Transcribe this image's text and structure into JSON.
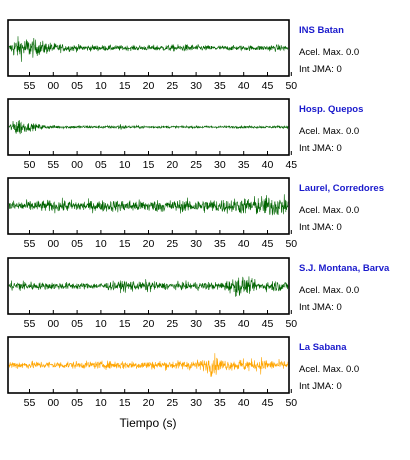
{
  "chart_data": {
    "type": "line",
    "xlabel": "Tiempo (s)",
    "panels": [
      {
        "station": "INS Batan",
        "accel_label": "Acel. Max. 0.0",
        "jma_label": "Int JMA: 0",
        "color": "#006400",
        "tick_labels": [
          "55",
          "00",
          "05",
          "10",
          "15",
          "20",
          "25",
          "30",
          "35",
          "40",
          "45",
          "50"
        ],
        "envelope": [
          [
            0,
            0.25
          ],
          [
            0.02,
            0.85
          ],
          [
            0.05,
            0.9
          ],
          [
            0.08,
            0.8
          ],
          [
            0.11,
            0.6
          ],
          [
            0.15,
            0.45
          ],
          [
            0.2,
            0.3
          ],
          [
            0.3,
            0.25
          ],
          [
            0.45,
            0.2
          ],
          [
            0.6,
            0.28
          ],
          [
            0.65,
            0.3
          ],
          [
            0.7,
            0.22
          ],
          [
            0.8,
            0.2
          ],
          [
            0.9,
            0.22
          ],
          [
            0.95,
            0.28
          ],
          [
            1.0,
            0.22
          ]
        ]
      },
      {
        "station": "Hosp. Quepos",
        "accel_label": "Acel. Max. 0.0",
        "jma_label": "Int JMA: 0",
        "color": "#006400",
        "tick_labels": [
          "50",
          "55",
          "00",
          "05",
          "10",
          "15",
          "20",
          "25",
          "30",
          "35",
          "40",
          "45"
        ],
        "envelope": [
          [
            0,
            0.2
          ],
          [
            0.02,
            0.55
          ],
          [
            0.03,
            0.9
          ],
          [
            0.05,
            0.5
          ],
          [
            0.08,
            0.3
          ],
          [
            0.15,
            0.15
          ],
          [
            0.3,
            0.12
          ],
          [
            0.38,
            0.12
          ],
          [
            0.4,
            0.3
          ],
          [
            0.42,
            0.12
          ],
          [
            0.6,
            0.1
          ],
          [
            0.8,
            0.1
          ],
          [
            0.95,
            0.1
          ],
          [
            1.0,
            0.1
          ]
        ]
      },
      {
        "station": "Laurel, Corredores",
        "accel_label": "Acel. Max. 0.0",
        "jma_label": "Int JMA: 0",
        "color": "#006400",
        "tick_labels": [
          "55",
          "00",
          "05",
          "10",
          "15",
          "20",
          "25",
          "30",
          "35",
          "40",
          "45",
          "50"
        ],
        "envelope": [
          [
            0,
            0.45
          ],
          [
            0.1,
            0.45
          ],
          [
            0.2,
            0.5
          ],
          [
            0.3,
            0.45
          ],
          [
            0.4,
            0.5
          ],
          [
            0.5,
            0.5
          ],
          [
            0.6,
            0.5
          ],
          [
            0.7,
            0.55
          ],
          [
            0.8,
            0.6
          ],
          [
            0.85,
            0.7
          ],
          [
            0.9,
            0.8
          ],
          [
            0.95,
            0.9
          ],
          [
            1.0,
            0.7
          ]
        ]
      },
      {
        "station": "S.J. Montana, Barva",
        "accel_label": "Acel. Max. 0.0",
        "jma_label": "Int JMA: 0",
        "color": "#006400",
        "tick_labels": [
          "55",
          "00",
          "05",
          "10",
          "15",
          "20",
          "25",
          "30",
          "35",
          "40",
          "45",
          "50"
        ],
        "envelope": [
          [
            0,
            0.35
          ],
          [
            0.03,
            0.5
          ],
          [
            0.1,
            0.3
          ],
          [
            0.2,
            0.3
          ],
          [
            0.3,
            0.25
          ],
          [
            0.4,
            0.4
          ],
          [
            0.43,
            0.55
          ],
          [
            0.47,
            0.3
          ],
          [
            0.5,
            0.55
          ],
          [
            0.53,
            0.3
          ],
          [
            0.6,
            0.3
          ],
          [
            0.7,
            0.35
          ],
          [
            0.75,
            0.3
          ],
          [
            0.8,
            0.6
          ],
          [
            0.82,
            0.9
          ],
          [
            0.86,
            0.6
          ],
          [
            0.9,
            0.3
          ],
          [
            0.95,
            0.5
          ],
          [
            1.0,
            0.35
          ]
        ]
      },
      {
        "station": "La Sabana",
        "accel_label": "Acel. Max. 0.0",
        "jma_label": "Int JMA: 0",
        "color": "#FFA500",
        "tick_labels": [
          "55",
          "00",
          "05",
          "10",
          "15",
          "20",
          "25",
          "30",
          "35",
          "40",
          "45",
          "50"
        ],
        "envelope": [
          [
            0,
            0.35
          ],
          [
            0.1,
            0.3
          ],
          [
            0.2,
            0.3
          ],
          [
            0.3,
            0.3
          ],
          [
            0.4,
            0.35
          ],
          [
            0.5,
            0.35
          ],
          [
            0.6,
            0.35
          ],
          [
            0.7,
            0.45
          ],
          [
            0.73,
            0.95
          ],
          [
            0.76,
            0.5
          ],
          [
            0.8,
            0.4
          ],
          [
            0.85,
            0.6
          ],
          [
            0.88,
            0.4
          ],
          [
            0.9,
            0.7
          ],
          [
            0.93,
            0.4
          ],
          [
            1.0,
            0.35
          ]
        ]
      }
    ]
  }
}
